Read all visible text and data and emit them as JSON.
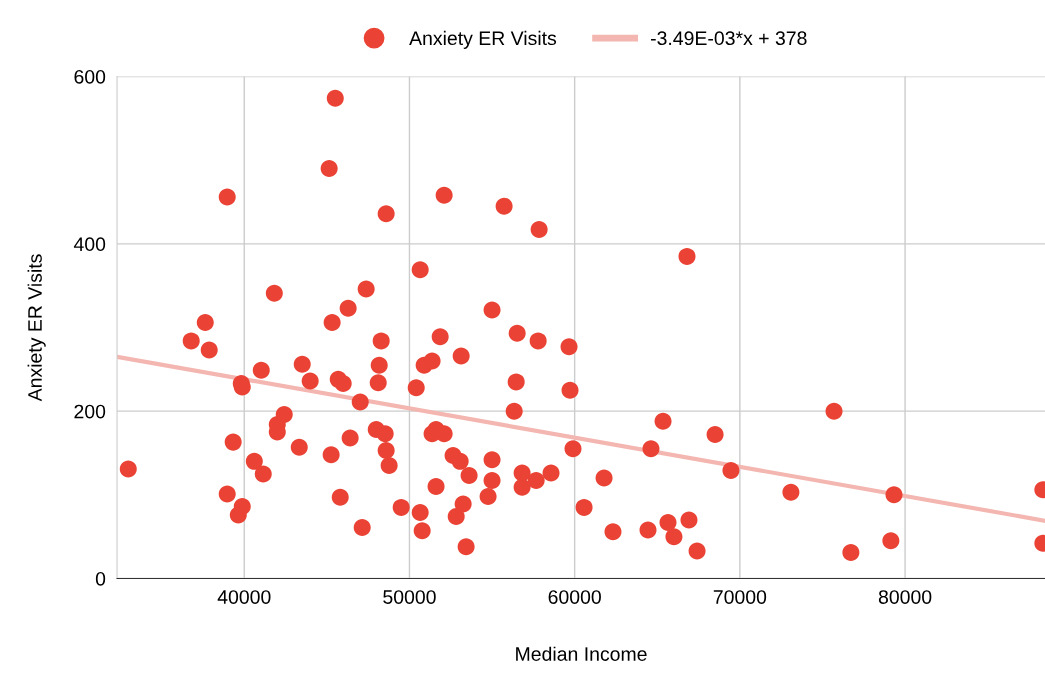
{
  "chart_data": {
    "type": "scatter",
    "xlabel": "Median Income",
    "ylabel": "Anxiety ER Visits",
    "xlim": [
      32300,
      88470
    ],
    "xticks": [
      40000,
      50000,
      60000,
      70000,
      80000
    ],
    "ylim": [
      0,
      600
    ],
    "yticks": [
      0,
      200,
      400,
      600
    ],
    "grid": true,
    "legend": "top",
    "marker": "circle",
    "series": [
      {
        "name": "Anxiety ER Visits",
        "color": "#ea4335",
        "x": [
          32980,
          36790,
          37640,
          37880,
          38970,
          38970,
          39330,
          39640,
          39820,
          39880,
          39880,
          40610,
          41030,
          41150,
          41820,
          42000,
          42000,
          42420,
          43330,
          43510,
          43990,
          45140,
          45260,
          45320,
          45510,
          45690,
          45810,
          45990,
          46290,
          46410,
          47020,
          47140,
          47380,
          47990,
          48110,
          48170,
          48290,
          48530,
          48590,
          48590,
          48770,
          49500,
          50410,
          50650,
          50650,
          50770,
          50890,
          51370,
          51370,
          51610,
          51610,
          51860,
          52100,
          52100,
          52640,
          52830,
          53070,
          53130,
          53250,
          53430,
          53610,
          54760,
          55000,
          55000,
          55000,
          55730,
          56340,
          56460,
          56520,
          56820,
          56820,
          57670,
          57790,
          57850,
          58570,
          59660,
          59720,
          59900,
          60570,
          61780,
          62320,
          64440,
          64620,
          65350,
          65650,
          66010,
          66800,
          66920,
          67410,
          68500,
          69460,
          73090,
          75700,
          76720,
          79140,
          79330,
          88340,
          88340
        ],
        "values": [
          131,
          284,
          306,
          273,
          456,
          101,
          163,
          76,
          233,
          229,
          86,
          140,
          249,
          125,
          341,
          184,
          175,
          196,
          157,
          256,
          236,
          490,
          148,
          306,
          574,
          238,
          97,
          233,
          323,
          168,
          211,
          61,
          346,
          178,
          234,
          255,
          284,
          173,
          153,
          436,
          135,
          85,
          228,
          369,
          79,
          57,
          255,
          260,
          173,
          178,
          110,
          289,
          458,
          173,
          147,
          74,
          140,
          266,
          89,
          38,
          123,
          98,
          142,
          117,
          321,
          445,
          200,
          235,
          293,
          109,
          126,
          117,
          284,
          417,
          126,
          277,
          225,
          155,
          85,
          120,
          56,
          58,
          155,
          188,
          67,
          50,
          385,
          70,
          33,
          172,
          129,
          103,
          200,
          31,
          45,
          100,
          106,
          42
        ]
      },
      {
        "name": "-3.49E-03*x + 378",
        "color": "#f4b6b0",
        "type": "line",
        "marker": "none",
        "x": [
          32300,
          88470
        ],
        "values": [
          265,
          69
        ]
      }
    ]
  }
}
